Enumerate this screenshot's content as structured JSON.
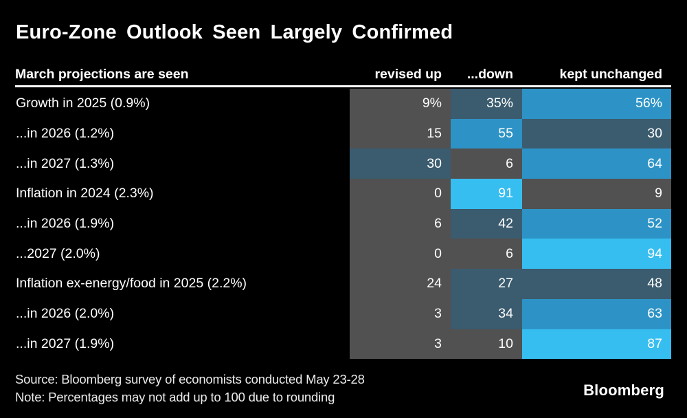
{
  "chart_data": {
    "type": "heatmap",
    "title": "Euro-Zone Outlook Seen Largely Confirmed",
    "row_axis_label": "March projections are seen",
    "columns": [
      "revised up",
      "...down",
      "kept unchanged"
    ],
    "rows": [
      {
        "label": "Growth in 2025 (0.9%)",
        "values": [
          9,
          35,
          56
        ],
        "display": [
          "9%",
          "35%",
          "56%"
        ]
      },
      {
        "label": "...in 2026 (1.2%)",
        "values": [
          15,
          55,
          30
        ],
        "display": [
          "15",
          "55",
          "30"
        ]
      },
      {
        "label": "...in 2027 (1.3%)",
        "values": [
          30,
          6,
          64
        ],
        "display": [
          "30",
          "6",
          "64"
        ]
      },
      {
        "label": "Inflation in 2024 (2.3%)",
        "values": [
          0,
          91,
          9
        ],
        "display": [
          "0",
          "91",
          "9"
        ]
      },
      {
        "label": "...in 2026 (1.9%)",
        "values": [
          6,
          42,
          52
        ],
        "display": [
          "6",
          "42",
          "52"
        ]
      },
      {
        "label": "...2027 (2.0%)",
        "values": [
          0,
          6,
          94
        ],
        "display": [
          "0",
          "6",
          "94"
        ]
      },
      {
        "label": "Inflation ex-energy/food in 2025 (2.2%)",
        "values": [
          24,
          27,
          48
        ],
        "display": [
          "24",
          "27",
          "48"
        ]
      },
      {
        "label": "...in 2026 (2.0%)",
        "values": [
          3,
          34,
          63
        ],
        "display": [
          "3",
          "34",
          "63"
        ]
      },
      {
        "label": "...in 2027 (1.9%)",
        "values": [
          3,
          10,
          87
        ],
        "display": [
          "3",
          "10",
          "87"
        ]
      }
    ],
    "value_format": "percent of economists surveyed, shown 0-100",
    "color_bins": [
      {
        "max": 25,
        "color": "#515151"
      },
      {
        "max": 50,
        "color": "#3b5b6e"
      },
      {
        "max": 75,
        "color": "#2d93c6"
      },
      {
        "max": 100,
        "color": "#37bef0"
      }
    ],
    "legend": "none",
    "grid": false,
    "background": "#000000",
    "text_color": "#ffffff"
  },
  "footer": {
    "source": "Source: Bloomberg survey of economists conducted May 23-28",
    "note": "Note: Percentages may not add up to 100 due to rounding",
    "logo": "Bloomberg"
  }
}
